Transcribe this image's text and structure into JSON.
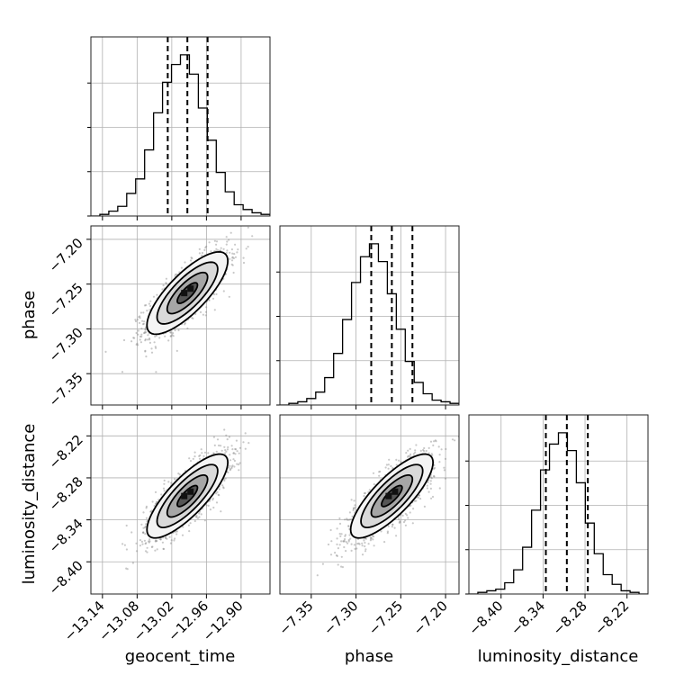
{
  "chart_data": {
    "type": "corner",
    "parameters": [
      "geocent_time",
      "phase",
      "luminosity_distance"
    ],
    "labels": {
      "geocent_time": "geocent_time",
      "phase": "phase",
      "luminosity_distance": "luminosity_distance"
    },
    "ranges": {
      "geocent_time": [
        -13.16,
        -12.85
      ],
      "phase": [
        -7.385,
        -7.185
      ],
      "luminosity_distance": [
        -8.446,
        -8.19
      ]
    },
    "ticks": {
      "geocent_time": [
        {
          "value": -13.14,
          "label": "−13.14"
        },
        {
          "value": -13.08,
          "label": "−13.08"
        },
        {
          "value": -13.02,
          "label": "−13.02"
        },
        {
          "value": -12.96,
          "label": "−12.96"
        },
        {
          "value": -12.9,
          "label": "−12.90"
        }
      ],
      "phase": [
        {
          "value": -7.35,
          "label": "−7.35"
        },
        {
          "value": -7.3,
          "label": "−7.30"
        },
        {
          "value": -7.25,
          "label": "−7.25"
        },
        {
          "value": -7.2,
          "label": "−7.20"
        }
      ],
      "luminosity_distance": [
        {
          "value": -8.4,
          "label": "−8.40"
        },
        {
          "value": -8.34,
          "label": "−8.34"
        },
        {
          "value": -8.28,
          "label": "−8.28"
        },
        {
          "value": -8.22,
          "label": "−8.22"
        }
      ]
    },
    "quantiles": {
      "geocent_time": [
        -13.027,
        -12.993,
        -12.958
      ],
      "phase": [
        -7.283,
        -7.26,
        -7.237
      ],
      "luminosity_distance": [
        -8.336,
        -8.306,
        -8.276
      ]
    },
    "marginal_histograms": {
      "geocent_time": [
        0.0,
        0.01,
        0.03,
        0.06,
        0.14,
        0.23,
        0.41,
        0.64,
        0.83,
        0.94,
        1.0,
        0.88,
        0.67,
        0.47,
        0.27,
        0.15,
        0.07,
        0.04,
        0.02,
        0.01
      ],
      "phase": [
        0.0,
        0.01,
        0.02,
        0.04,
        0.08,
        0.17,
        0.32,
        0.53,
        0.76,
        0.92,
        1.0,
        0.89,
        0.69,
        0.47,
        0.27,
        0.14,
        0.07,
        0.03,
        0.02,
        0.01
      ],
      "luminosity_distance": [
        0.0,
        0.01,
        0.02,
        0.03,
        0.07,
        0.15,
        0.29,
        0.52,
        0.77,
        0.93,
        1.0,
        0.89,
        0.69,
        0.44,
        0.25,
        0.12,
        0.06,
        0.02,
        0.01,
        0.0
      ]
    },
    "pairs": [
      {
        "x": "geocent_time",
        "y": "phase",
        "mean": [
          -12.993,
          -7.26
        ],
        "std": [
          0.035,
          0.023
        ],
        "correlation": 0.78
      },
      {
        "x": "geocent_time",
        "y": "luminosity_distance",
        "mean": [
          -12.993,
          -8.306
        ],
        "std": [
          0.035,
          0.03
        ],
        "correlation": 0.8
      },
      {
        "x": "phase",
        "y": "luminosity_distance",
        "mean": [
          -7.26,
          -8.306
        ],
        "std": [
          0.023,
          0.03
        ],
        "correlation": 0.8
      }
    ],
    "contour_levels_sigma": [
      0.5,
      1.0,
      1.5,
      2.0
    ],
    "grid": true,
    "colors": {
      "line": "#000000",
      "grid": "#b0b0b0",
      "points": "#888888"
    }
  }
}
